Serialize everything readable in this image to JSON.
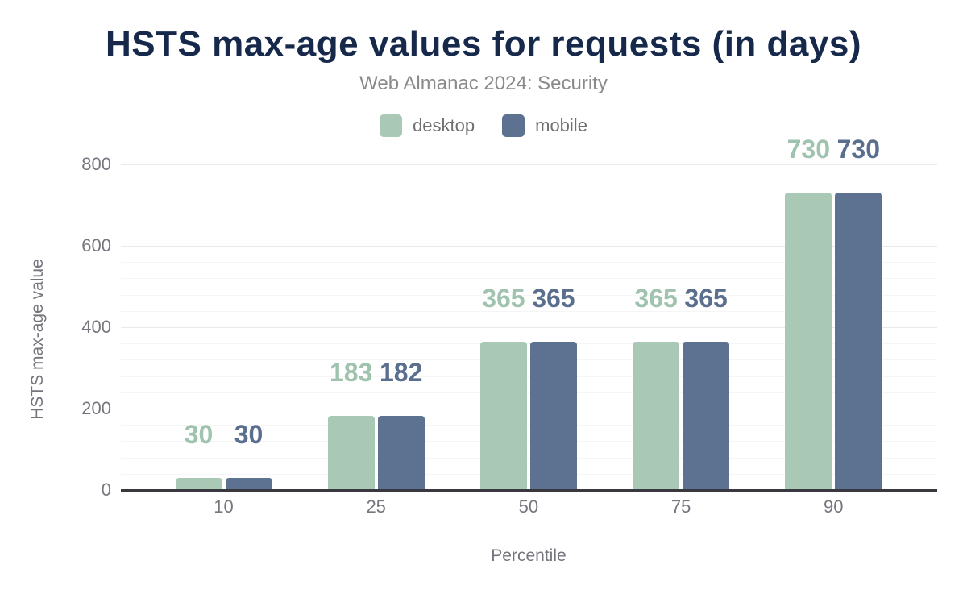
{
  "chart_data": {
    "type": "bar",
    "title": "HSTS max-age values for requests (in days)",
    "subtitle": "Web Almanac 2024: Security",
    "categories": [
      "10",
      "25",
      "50",
      "75",
      "90"
    ],
    "series": [
      {
        "name": "desktop",
        "color": "#a9c9b6",
        "label_color": "#9fc3ae",
        "values": [
          30,
          183,
          365,
          365,
          730
        ]
      },
      {
        "name": "mobile",
        "color": "#5d7190",
        "label_color": "#5a6e8e",
        "values": [
          30,
          182,
          365,
          365,
          730
        ]
      }
    ],
    "xlabel": "Percentile",
    "ylabel": "HSTS max-age value",
    "ylim": [
      0,
      800
    ],
    "yticks": [
      0,
      200,
      400,
      600,
      800
    ],
    "minor_tick_interval": 40,
    "grid": "horizontal-only",
    "legend_position": "top-center",
    "colors": {
      "title": "#16294b",
      "subtitle": "#8a8a8a",
      "axis_text": "#76767f",
      "axis_line": "#38383e",
      "major_gridline": "#e9e9e9",
      "minor_gridline": "#f5f5f6",
      "background": "#ffffff"
    }
  }
}
